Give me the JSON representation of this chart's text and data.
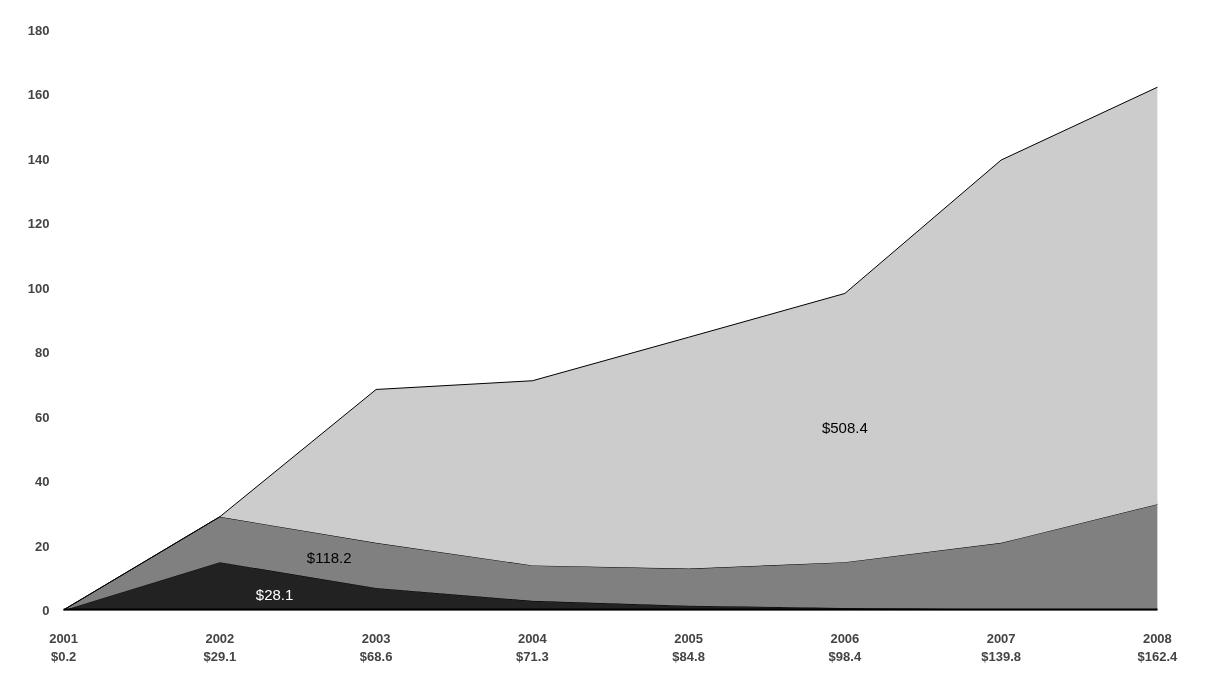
{
  "chart_data": {
    "type": "area",
    "stacked": true,
    "categories": [
      "2001\n$0.2",
      "2002\n$29.1",
      "2003\n$68.6",
      "2004\n$71.3",
      "2005\n$84.8",
      "2006\n$98.4",
      "2007\n$139.8",
      "2008\n$162.4"
    ],
    "series": [
      {
        "color": "#222222",
        "values": [
          0.1,
          15,
          7,
          3,
          1.5,
          0.8,
          0.4,
          0.3
        ]
      },
      {
        "color": "#808080",
        "values": [
          0.1,
          14.1,
          14,
          11,
          11.5,
          14.2,
          20.6,
          32.7
        ]
      },
      {
        "color": "#cccccc",
        "values": [
          0,
          0,
          47.6,
          57.3,
          71.8,
          83.4,
          118.8,
          129.4
        ]
      }
    ],
    "annotations": [
      "$28.1",
      "$118.2",
      "$508.4"
    ],
    "ylim": [
      0,
      180
    ],
    "yticks": [
      0,
      20,
      40,
      60,
      80,
      100,
      120,
      140,
      160,
      180
    ],
    "grid": false
  }
}
